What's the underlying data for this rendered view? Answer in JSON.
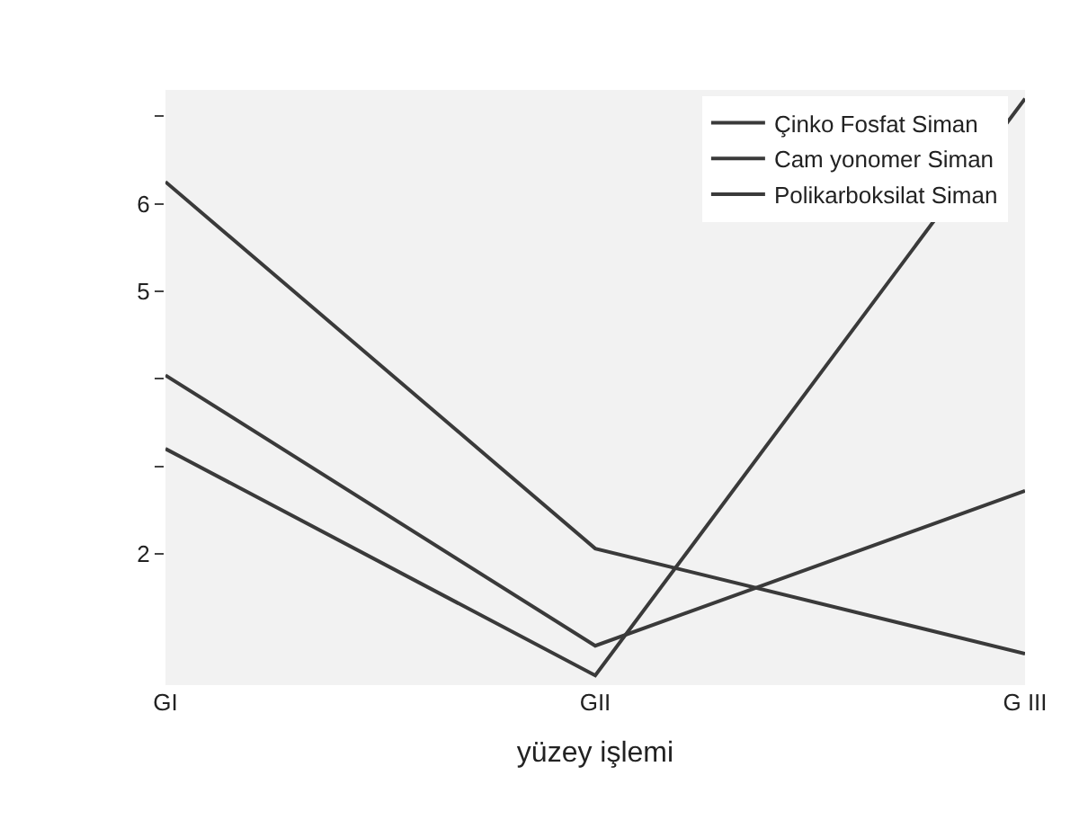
{
  "chart_data": {
    "type": "line",
    "xlabel": "yüzey işlemi",
    "categories": [
      "GI",
      "GII",
      "G III"
    ],
    "series": [
      {
        "name": "Çinko Fosfat Siman",
        "color": "#3a3a3a",
        "values": [
          6.25,
          2.06,
          0.86
        ]
      },
      {
        "name": "Cam yonomer Siman",
        "color": "#3a3a3a",
        "values": [
          4.04,
          0.95,
          2.72
        ]
      },
      {
        "name": "Polikarboksilat Siman",
        "color": "#3a3a3a",
        "values": [
          3.2,
          0.61,
          7.2
        ]
      }
    ],
    "ylim": [
      0.5,
      7.3
    ],
    "yticks": [
      2,
      {
        "value": 3,
        "label": null
      },
      {
        "value": 4,
        "label": null
      },
      5,
      6,
      {
        "value": 7,
        "label": null
      }
    ],
    "legend": "top right",
    "grid": false,
    "marker": "none",
    "line_style": "solid"
  }
}
